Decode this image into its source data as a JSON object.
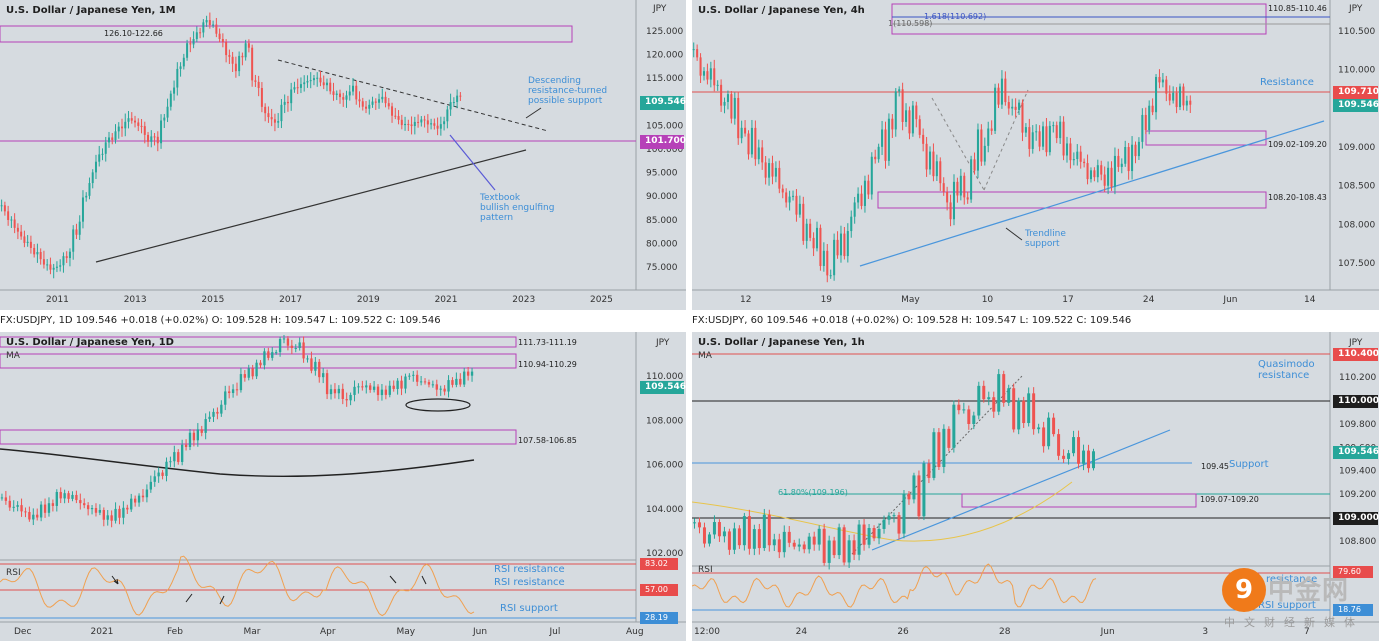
{
  "colors": {
    "bg": "#d6dbe0",
    "up": "#26a69a",
    "down": "#ef5350",
    "magenta": "#b640b8",
    "blue": "#4a96dc",
    "black": "#2a2a2a",
    "rsi": "#f0a050",
    "ma_yellow": "#e8c44a",
    "pricetag": "#26a69a",
    "redtag": "#e84c4c"
  },
  "panels": {
    "tl": {
      "title": "U.S. Dollar / Japanese Yen, 1M",
      "axis_unit": "JPY",
      "y_ticks": [
        "125.000",
        "120.000",
        "115.000",
        "110.000",
        "105.000",
        "100.000",
        "95.000",
        "90.000",
        "85.000",
        "80.000",
        "75.000"
      ],
      "x_ticks": [
        "2011",
        "2013",
        "2015",
        "2017",
        "2019",
        "2021",
        "2023",
        "2025"
      ],
      "zone_label": "126.10-122.66",
      "price_tag": "109.546",
      "level_tag": "101.700",
      "annotation_1": [
        "Descending",
        "resistance-turned",
        "possible support"
      ],
      "annotation_2": [
        "Textbook",
        "bullish engulfing",
        "pattern"
      ],
      "chart_data": {
        "type": "line",
        "series": [
          {
            "values": [
              88,
              85,
              82,
              80,
              78,
              76,
              77,
              80,
              86,
              93,
              98,
              101,
              103,
              105,
              104,
              101,
              102,
              108,
              114,
              119,
              121,
              124,
              122,
              118,
              115,
              120,
              112,
              106,
              104,
              108,
              111,
              112,
              113,
              112,
              110,
              109,
              111,
              107,
              108,
              109,
              106,
              104,
              104,
              105,
              104,
              103,
              108,
              109.5
            ]
          }
        ],
        "ylim": [
          72,
          128
        ],
        "xlim": [
          2009.5,
          2026.2
        ]
      }
    },
    "tr": {
      "title": "U.S. Dollar / Japanese Yen, 4h",
      "axis_unit": "JPY",
      "y_ticks": [
        "110.500",
        "110.000",
        "109.500",
        "109.000",
        "108.500",
        "108.000",
        "107.500"
      ],
      "x_ticks": [
        "12",
        "19",
        "May",
        "10",
        "17",
        "24",
        "Jun",
        "14"
      ],
      "fib_1": "1.618(110.692)",
      "fib_2": "1(110.598)",
      "zone_top": "110.85-110.46",
      "zone_mid": "109.02-109.20",
      "zone_low": "108.20-108.43",
      "resistance": "Resistance",
      "trendline": [
        "Trendline",
        "support"
      ],
      "tag_red": "109.710",
      "tag_price": "109.546",
      "chart_data": {
        "type": "line",
        "series": [
          {
            "values": [
              110.2,
              109.9,
              109.6,
              109.2,
              108.9,
              108.6,
              108.3,
              107.9,
              107.6,
              108.1,
              108.6,
              109.1,
              109.6,
              109.3,
              108.8,
              108.4,
              108.7,
              109.2,
              109.8,
              109.4,
              109.1,
              109.3,
              109.0,
              108.8,
              108.7,
              108.9,
              109.1,
              109.9,
              109.7,
              109.6
            ]
          }
        ],
        "ylim": [
          107.3,
          110.9
        ]
      }
    },
    "bl": {
      "strip": "FX:USDJPY, 1D  109.546  +0.018 (+0.02%)  O: 109.528  H: 109.547  L: 109.522  C: 109.546",
      "title": "U.S. Dollar / Japanese Yen, 1D",
      "axis_unit": "JPY",
      "ma_label": "MA",
      "y_ticks": [
        "110.000",
        "108.000",
        "106.000",
        "104.000",
        "102.000"
      ],
      "x_ticks": [
        "Dec",
        "2021",
        "Feb",
        "Mar",
        "Apr",
        "May",
        "Jun",
        "Jul",
        "Aug"
      ],
      "zone_1": "111.73-111.19",
      "zone_2": "110.94-110.29",
      "zone_3": "107.58-106.85",
      "tag_price": "109.546",
      "rsi_label": "RSI",
      "rsi_res_1": "RSI resistance",
      "rsi_res_2": "RSI resistance",
      "rsi_sup": "RSI support",
      "rsi_tags": [
        "83.02",
        "57.00",
        "28.19"
      ],
      "chart_data": {
        "type": "line",
        "series": [
          {
            "name": "MA",
            "values": [
              106.6,
              106.4,
              106.2,
              106.0,
              105.9,
              105.8,
              105.8,
              105.9,
              105.9,
              106.0,
              106.1
            ]
          }
        ],
        "ylim": [
          101.5,
          111.2
        ]
      }
    },
    "br": {
      "strip": "FX:USDJPY, 60  109.546  +0.018 (+0.02%)  O: 109.528  H: 109.547  L: 109.522  C: 109.546",
      "title": "U.S. Dollar / Japanese Yen, 1h",
      "axis_unit": "JPY",
      "ma_label": "MA",
      "y_ticks": [
        "110.200",
        "110.000",
        "109.800",
        "109.600",
        "109.400",
        "109.200",
        "109.000",
        "108.800"
      ],
      "x_ticks": [
        "12:00",
        "24",
        "26",
        "28",
        "Jun",
        "3",
        "7"
      ],
      "quasimodo": [
        "Quasimodo",
        "resistance"
      ],
      "support": "Support",
      "support_level": "109.45",
      "fib": "61.80%(109.196)",
      "zone": "109.07-109.20",
      "tags": [
        "110.400",
        "110.000",
        "109.546",
        "109.000"
      ],
      "rsi_label": "RSI",
      "rsi_tags": [
        "79.60",
        "18.76"
      ],
      "rsi_res": "resistance",
      "rsi_sup": "RSI support",
      "chart_data": {
        "type": "line",
        "series": [
          {
            "values": [
              108.92,
              108.88,
              108.85,
              108.9,
              108.86,
              108.82,
              108.85,
              108.78,
              108.8,
              108.9,
              109.0,
              109.2,
              109.5,
              109.85,
              109.9,
              110.05,
              109.9,
              109.8,
              109.6,
              109.5,
              109.55
            ]
          }
        ],
        "ylim": [
          108.7,
          110.5
        ]
      }
    }
  },
  "watermark": {
    "logo": "9",
    "name": "中金网",
    "sub": "中文财经新媒体"
  }
}
